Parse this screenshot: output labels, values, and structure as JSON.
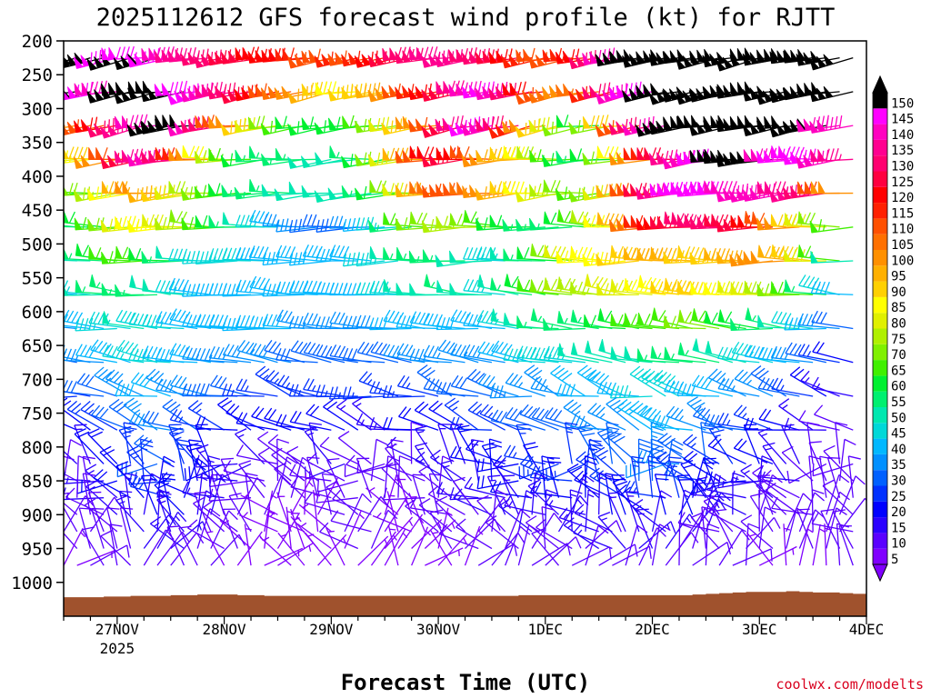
{
  "chart_data": {
    "type": "wind-barb time-height profile",
    "title": "2025112612 GFS forecast wind profile (kt) for RJTT",
    "xlabel": "Forecast Time (UTC)",
    "ylabel": "",
    "y_scale": "reversed (pressure, hPa)",
    "ylim": [
      1050,
      200
    ],
    "y_ticks": [
      "200",
      "250",
      "300",
      "350",
      "400",
      "450",
      "500",
      "550",
      "600",
      "650",
      "700",
      "750",
      "800",
      "850",
      "900",
      "950",
      "1000"
    ],
    "x_range": [
      "2025-11-26 12Z",
      "2025-12-04 00Z"
    ],
    "x_ticks": [
      "27NOV",
      "28NOV",
      "29NOV",
      "30NOV",
      "1DEC",
      "2DEC",
      "3DEC",
      "4DEC"
    ],
    "x_year_label": "2025",
    "time_step_hours": 3,
    "levels_hPa": [
      225,
      275,
      325,
      375,
      425,
      475,
      525,
      575,
      625,
      675,
      725,
      775,
      825,
      850,
      875,
      900,
      925,
      950,
      975
    ],
    "barb_units": "kt",
    "colorbar": {
      "levels": [
        5,
        10,
        15,
        20,
        25,
        30,
        35,
        40,
        45,
        50,
        55,
        60,
        65,
        70,
        75,
        80,
        85,
        90,
        95,
        100,
        105,
        110,
        115,
        120,
        125,
        130,
        135,
        140,
        145,
        150
      ],
      "colors": [
        "#8000ff",
        "#5a00ff",
        "#2a00ff",
        "#0000ff",
        "#0030ff",
        "#0060ff",
        "#0090ff",
        "#00b8ff",
        "#00d8d8",
        "#00e8b0",
        "#00f070",
        "#00f030",
        "#40f000",
        "#80f000",
        "#b0f000",
        "#e0f000",
        "#ffff00",
        "#ffd000",
        "#ffb000",
        "#ff9000",
        "#ff7000",
        "#ff5000",
        "#ff2000",
        "#ff0000",
        "#ff0040",
        "#ff0070",
        "#ff0090",
        "#ff00c0",
        "#ff00ff",
        "#000000"
      ],
      "overflow_color": "#000000"
    },
    "terrain_color": "#a0522d",
    "speed_by_level_kt": {
      "225": [
        150,
        150,
        150,
        150,
        145,
        150,
        145,
        150,
        145,
        140,
        135,
        135,
        130,
        130,
        125,
        125,
        120,
        120,
        120,
        115,
        110,
        110,
        115,
        110,
        115,
        120,
        125,
        130,
        130,
        135,
        135,
        135,
        130,
        130,
        125,
        120,
        115,
        110,
        110,
        115,
        120,
        130,
        140,
        150,
        150,
        150,
        150,
        150,
        150,
        150,
        150,
        150,
        150,
        150,
        150,
        150,
        150,
        150,
        150,
        150
      ],
      "275": [
        150,
        150,
        150,
        145,
        140,
        150,
        150,
        150,
        150,
        150,
        145,
        145,
        140,
        135,
        130,
        125,
        120,
        110,
        105,
        100,
        95,
        90,
        85,
        90,
        90,
        95,
        100,
        110,
        115,
        120,
        125,
        135,
        140,
        145,
        140,
        130,
        120,
        110,
        105,
        100,
        105,
        115,
        130,
        140,
        145,
        150,
        150,
        150,
        150,
        150,
        150,
        150,
        150,
        150,
        150,
        150,
        150,
        150,
        150,
        150
      ],
      "325": [
        95,
        100,
        105,
        110,
        120,
        130,
        135,
        140,
        150,
        150,
        150,
        140,
        130,
        110,
        100,
        90,
        80,
        70,
        65,
        60,
        60,
        60,
        60,
        60,
        65,
        70,
        80,
        90,
        100,
        110,
        125,
        135,
        145,
        140,
        130,
        115,
        100,
        90,
        80,
        70,
        60,
        70,
        90,
        110,
        130,
        140,
        150,
        150,
        150,
        150,
        150,
        150,
        150,
        150,
        150,
        150,
        150,
        150,
        140,
        140
      ],
      "375": [
        75,
        80,
        85,
        90,
        100,
        110,
        125,
        135,
        140,
        130,
        115,
        100,
        85,
        75,
        65,
        60,
        55,
        55,
        55,
        55,
        50,
        50,
        50,
        55,
        60,
        70,
        80,
        95,
        110,
        120,
        125,
        120,
        110,
        100,
        95,
        90,
        85,
        75,
        65,
        60,
        55,
        60,
        70,
        85,
        100,
        115,
        125,
        135,
        140,
        145,
        150,
        150,
        150,
        150,
        140,
        145,
        145,
        145,
        140,
        135
      ],
      "425": [
        55,
        60,
        65,
        70,
        75,
        85,
        95,
        100,
        95,
        90,
        80,
        75,
        70,
        65,
        60,
        55,
        55,
        55,
        50,
        50,
        50,
        50,
        50,
        50,
        55,
        60,
        70,
        80,
        95,
        105,
        110,
        110,
        105,
        100,
        95,
        90,
        85,
        80,
        75,
        70,
        65,
        70,
        80,
        95,
        110,
        125,
        135,
        145,
        145,
        145,
        145,
        140,
        140,
        140,
        140,
        135,
        135,
        130,
        110,
        100
      ],
      "475": [
        50,
        55,
        55,
        60,
        65,
        70,
        80,
        85,
        85,
        80,
        75,
        70,
        65,
        60,
        55,
        50,
        45,
        40,
        35,
        35,
        30,
        30,
        30,
        35,
        40,
        45,
        55,
        65,
        70,
        70,
        75,
        75,
        70,
        65,
        60,
        60,
        55,
        55,
        55,
        60,
        65,
        75,
        85,
        95,
        105,
        115,
        120,
        125,
        130,
        130,
        130,
        125,
        125,
        120,
        110,
        100,
        90,
        80,
        70,
        65
      ],
      "525": [
        45,
        45,
        50,
        55,
        60,
        65,
        65,
        65,
        60,
        55,
        50,
        45,
        45,
        45,
        45,
        45,
        40,
        40,
        40,
        40,
        40,
        40,
        40,
        40,
        45,
        45,
        50,
        55,
        55,
        55,
        55,
        50,
        50,
        45,
        45,
        50,
        55,
        60,
        70,
        80,
        85,
        85,
        85,
        90,
        90,
        95,
        95,
        95,
        90,
        90,
        90,
        95,
        95,
        100,
        100,
        95,
        90,
        80,
        65,
        50
      ],
      "575": [
        35,
        40,
        45,
        50,
        55,
        55,
        55,
        55,
        50,
        50,
        45,
        40,
        40,
        40,
        40,
        40,
        40,
        40,
        40,
        40,
        40,
        40,
        40,
        40,
        40,
        45,
        45,
        50,
        50,
        50,
        55,
        50,
        50,
        45,
        50,
        55,
        60,
        65,
        70,
        75,
        75,
        75,
        80,
        80,
        80,
        85,
        85,
        90,
        90,
        90,
        85,
        85,
        80,
        80,
        75,
        70,
        65,
        55,
        45,
        40
      ],
      "625": [
        35,
        35,
        40,
        40,
        45,
        45,
        50,
        45,
        45,
        45,
        40,
        40,
        40,
        40,
        40,
        40,
        40,
        40,
        40,
        35,
        35,
        35,
        35,
        35,
        35,
        35,
        40,
        40,
        40,
        40,
        40,
        40,
        40,
        40,
        45,
        50,
        50,
        55,
        55,
        55,
        55,
        55,
        60,
        60,
        65,
        65,
        65,
        65,
        70,
        70,
        65,
        60,
        60,
        55,
        55,
        50,
        45,
        40,
        35,
        30
      ],
      "675": [
        30,
        30,
        35,
        35,
        40,
        40,
        45,
        45,
        45,
        40,
        40,
        40,
        35,
        35,
        35,
        35,
        35,
        35,
        30,
        30,
        30,
        30,
        30,
        30,
        30,
        30,
        30,
        35,
        35,
        35,
        35,
        35,
        35,
        35,
        40,
        40,
        45,
        45,
        45,
        45,
        50,
        50,
        50,
        50,
        50,
        50,
        55,
        55,
        55,
        55,
        50,
        50,
        45,
        45,
        40,
        40,
        35,
        30,
        25,
        20
      ],
      "725": [
        20,
        25,
        25,
        30,
        30,
        35,
        35,
        40,
        40,
        35,
        35,
        35,
        30,
        30,
        30,
        25,
        25,
        25,
        25,
        25,
        25,
        25,
        25,
        25,
        25,
        25,
        25,
        25,
        25,
        30,
        30,
        30,
        30,
        30,
        35,
        35,
        35,
        35,
        35,
        40,
        40,
        40,
        40,
        40,
        45,
        45,
        45,
        45,
        40,
        40,
        40,
        35,
        35,
        35,
        30,
        30,
        25,
        20,
        15,
        15
      ],
      "775": [
        15,
        20,
        20,
        25,
        25,
        30,
        30,
        35,
        35,
        30,
        30,
        25,
        25,
        20,
        20,
        20,
        20,
        20,
        20,
        20,
        20,
        20,
        20,
        15,
        15,
        15,
        15,
        20,
        20,
        20,
        20,
        25,
        25,
        25,
        25,
        30,
        30,
        30,
        30,
        30,
        35,
        35,
        35,
        35,
        40,
        40,
        40,
        40,
        35,
        35,
        30,
        30,
        25,
        25,
        20,
        20,
        15,
        15,
        10,
        10
      ],
      "825": [
        10,
        15,
        15,
        20,
        20,
        25,
        25,
        30,
        30,
        25,
        25,
        20,
        20,
        15,
        15,
        15,
        10,
        10,
        10,
        15,
        15,
        15,
        10,
        10,
        10,
        10,
        10,
        15,
        15,
        15,
        15,
        20,
        20,
        20,
        20,
        25,
        25,
        25,
        25,
        25,
        30,
        30,
        30,
        30,
        35,
        35,
        35,
        30,
        30,
        25,
        25,
        20,
        20,
        20,
        15,
        15,
        10,
        10,
        10,
        10
      ],
      "850": [
        10,
        10,
        15,
        15,
        20,
        20,
        25,
        25,
        25,
        25,
        20,
        20,
        15,
        15,
        10,
        10,
        10,
        10,
        10,
        10,
        10,
        10,
        10,
        10,
        10,
        10,
        10,
        10,
        15,
        15,
        15,
        15,
        20,
        20,
        20,
        20,
        20,
        25,
        25,
        25,
        25,
        25,
        25,
        30,
        30,
        30,
        30,
        25,
        25,
        20,
        20,
        20,
        15,
        15,
        15,
        15,
        10,
        10,
        10,
        10
      ],
      "875": [
        10,
        10,
        10,
        15,
        15,
        20,
        20,
        20,
        25,
        20,
        20,
        15,
        15,
        10,
        10,
        10,
        10,
        10,
        10,
        10,
        10,
        10,
        10,
        10,
        10,
        10,
        10,
        10,
        10,
        10,
        15,
        15,
        15,
        15,
        15,
        20,
        20,
        20,
        20,
        20,
        20,
        20,
        25,
        25,
        25,
        25,
        25,
        20,
        20,
        20,
        15,
        15,
        15,
        15,
        10,
        10,
        10,
        10,
        10,
        10
      ],
      "900": [
        10,
        10,
        10,
        10,
        15,
        15,
        15,
        20,
        20,
        20,
        15,
        15,
        10,
        10,
        10,
        10,
        5,
        5,
        5,
        5,
        10,
        10,
        10,
        10,
        5,
        5,
        5,
        10,
        10,
        10,
        10,
        10,
        15,
        15,
        15,
        15,
        15,
        15,
        15,
        15,
        15,
        20,
        20,
        20,
        20,
        20,
        20,
        20,
        15,
        15,
        15,
        15,
        10,
        10,
        10,
        10,
        10,
        10,
        10,
        10
      ],
      "925": [
        10,
        10,
        10,
        10,
        10,
        15,
        15,
        15,
        15,
        15,
        15,
        10,
        10,
        10,
        10,
        5,
        5,
        5,
        5,
        5,
        5,
        10,
        10,
        10,
        5,
        5,
        5,
        5,
        10,
        10,
        10,
        10,
        10,
        10,
        15,
        15,
        15,
        15,
        15,
        15,
        15,
        15,
        15,
        15,
        15,
        15,
        15,
        15,
        15,
        10,
        10,
        10,
        10,
        10,
        10,
        10,
        10,
        10,
        10,
        10
      ],
      "950": [
        10,
        10,
        10,
        10,
        10,
        10,
        15,
        15,
        15,
        15,
        10,
        10,
        10,
        10,
        5,
        5,
        5,
        5,
        5,
        5,
        5,
        5,
        10,
        10,
        5,
        5,
        5,
        5,
        5,
        10,
        10,
        10,
        10,
        10,
        10,
        10,
        10,
        10,
        10,
        10,
        15,
        15,
        15,
        15,
        15,
        15,
        10,
        10,
        10,
        10,
        10,
        10,
        10,
        10,
        10,
        10,
        10,
        10,
        10,
        10
      ],
      "975": [
        5,
        5,
        10,
        10,
        10,
        10,
        10,
        10,
        10,
        10,
        10,
        10,
        5,
        5,
        5,
        5,
        5,
        5,
        5,
        5,
        5,
        5,
        5,
        5,
        5,
        5,
        5,
        5,
        5,
        5,
        5,
        10,
        10,
        10,
        10,
        10,
        10,
        10,
        10,
        10,
        10,
        10,
        10,
        10,
        10,
        10,
        10,
        10,
        10,
        10,
        10,
        10,
        5,
        5,
        5,
        5,
        5,
        5,
        10,
        10
      ]
    },
    "direction_by_level_deg": {
      "225": 260,
      "275": 260,
      "325": 260,
      "375": 265,
      "425": 265,
      "475": 270,
      "525": 270,
      "575": 275,
      "625": 275,
      "675": 280,
      "725": 285,
      "775": 290,
      "825": 300,
      "850": 310,
      "875": 320,
      "900": 330,
      "925": 340,
      "950": 350,
      "975": 10
    },
    "surface_pressure_hPa": [
      1022,
      1022,
      1022,
      1021,
      1021,
      1020,
      1020,
      1020,
      1019,
      1019,
      1018,
      1018,
      1018,
      1019,
      1019,
      1020,
      1020,
      1020,
      1020,
      1020,
      1020,
      1020,
      1020,
      1020,
      1020,
      1020,
      1020,
      1020,
      1020,
      1020,
      1020,
      1020,
      1020,
      1020,
      1019,
      1019,
      1019,
      1019,
      1019,
      1019,
      1019,
      1019,
      1019,
      1019,
      1019,
      1019,
      1019,
      1018,
      1017,
      1016,
      1015,
      1014,
      1014,
      1014,
      1013,
      1014,
      1015,
      1015,
      1016,
      1017
    ]
  },
  "footer": {
    "credit": "coolwx.com/modelts"
  }
}
